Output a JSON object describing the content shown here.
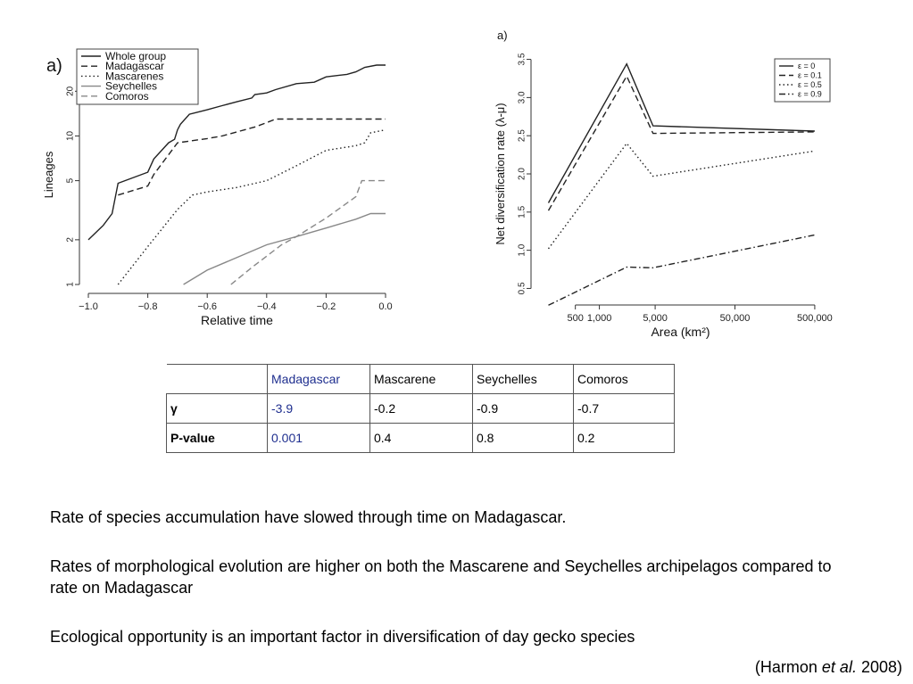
{
  "chart_data": [
    {
      "type": "line",
      "panel_label": "a)",
      "xlabel": "Relative time",
      "ylabel": "Lineages",
      "y_scale": "log",
      "xlim": [
        -1.0,
        0.0
      ],
      "ylim": [
        1,
        30
      ],
      "x_ticks": [
        "−1.0",
        "−0.8",
        "−0.6",
        "−0.4",
        "−0.2",
        "0.0"
      ],
      "x_tick_values": [
        -1.0,
        -0.8,
        -0.6,
        -0.4,
        -0.2,
        0.0
      ],
      "y_ticks": [
        "1",
        "2",
        "5",
        "10",
        "20"
      ],
      "y_tick_values": [
        1,
        2,
        5,
        10,
        20
      ],
      "legend_position": "top-left",
      "series": [
        {
          "name": "Whole group",
          "color": "#222222",
          "dash": "solid",
          "x": [
            -1.0,
            -0.95,
            -0.92,
            -0.9,
            -0.8,
            -0.78,
            -0.73,
            -0.71,
            -0.7,
            -0.69,
            -0.66,
            -0.6,
            -0.55,
            -0.5,
            -0.45,
            -0.44,
            -0.4,
            -0.37,
            -0.3,
            -0.24,
            -0.2,
            -0.13,
            -0.1,
            -0.07,
            -0.03,
            0.0
          ],
          "y": [
            2,
            2.5,
            3,
            4.8,
            5.7,
            7,
            9,
            9.5,
            11,
            12,
            14,
            15,
            16,
            17,
            18,
            19,
            19.5,
            20.5,
            22.5,
            23,
            25,
            26,
            27,
            29,
            30,
            30
          ]
        },
        {
          "name": "Madagascar",
          "color": "#222222",
          "dash": "dashed",
          "x": [
            -0.9,
            -0.8,
            -0.78,
            -0.7,
            -0.6,
            -0.55,
            -0.44,
            -0.4,
            -0.37,
            -0.3,
            -0.2,
            0.0
          ],
          "y": [
            4,
            4.6,
            5.5,
            9,
            9.6,
            10,
            11.5,
            12.3,
            13,
            13,
            13,
            13
          ]
        },
        {
          "name": "Mascarenes",
          "color": "#222222",
          "dash": "dotted",
          "x": [
            -0.9,
            -0.8,
            -0.7,
            -0.65,
            -0.6,
            -0.5,
            -0.4,
            -0.3,
            -0.2,
            -0.1,
            -0.07,
            -0.05,
            0.0
          ],
          "y": [
            1,
            1.8,
            3.2,
            4,
            4.2,
            4.5,
            5,
            6.3,
            8,
            8.6,
            9,
            10.5,
            11
          ]
        },
        {
          "name": "Seychelles",
          "color": "#888888",
          "dash": "solid",
          "x": [
            -0.68,
            -0.6,
            -0.4,
            -0.3,
            -0.2,
            -0.1,
            -0.05,
            0.0
          ],
          "y": [
            1,
            1.25,
            1.85,
            2.1,
            2.4,
            2.75,
            3,
            3
          ]
        },
        {
          "name": "Comoros",
          "color": "#888888",
          "dash": "dashed",
          "x": [
            -0.52,
            -0.45,
            -0.35,
            -0.3,
            -0.2,
            -0.1,
            -0.08,
            -0.05,
            0.0
          ],
          "y": [
            1,
            1.3,
            1.85,
            2.1,
            2.8,
            3.9,
            5,
            5,
            5
          ]
        }
      ]
    },
    {
      "type": "line",
      "panel_label": "a)",
      "xlabel": "Area (km²)",
      "ylabel": "Net diversification rate (λ-μ)",
      "x_scale": "log",
      "xlim": [
        180,
        600000
      ],
      "ylim": [
        0.4,
        3.6
      ],
      "x_ticks": [
        "500",
        "1,000",
        "5,000",
        "50,000",
        "500,000"
      ],
      "x_tick_values": [
        500,
        1000,
        5000,
        50000,
        500000
      ],
      "y_ticks": [
        "0.5",
        "1.0",
        "1.5",
        "2.0",
        "2.5",
        "3.0",
        "3.5"
      ],
      "y_tick_values": [
        0.5,
        1.0,
        1.5,
        2.0,
        2.5,
        3.0,
        3.5
      ],
      "legend_position": "top-right",
      "series": [
        {
          "name": "ε = 0",
          "color": "#222222",
          "dash": "solid",
          "x": [
            230,
            2200,
            4700,
            500000
          ],
          "y": [
            1.62,
            3.44,
            2.63,
            2.56
          ]
        },
        {
          "name": "ε = 0.1",
          "color": "#222222",
          "dash": "dashed",
          "x": [
            230,
            2200,
            4700,
            500000
          ],
          "y": [
            1.52,
            3.28,
            2.53,
            2.55
          ]
        },
        {
          "name": "ε = 0.5",
          "color": "#222222",
          "dash": "dotted",
          "x": [
            230,
            2200,
            4700,
            500000
          ],
          "y": [
            1.02,
            2.4,
            1.97,
            2.3
          ]
        },
        {
          "name": "ε = 0.9",
          "color": "#222222",
          "dash": "dashdot",
          "x": [
            230,
            2200,
            4700,
            500000
          ],
          "y": [
            0.28,
            0.78,
            0.77,
            1.2
          ]
        }
      ]
    }
  ],
  "table": {
    "headers": [
      "",
      "Madagascar",
      "Mascarene",
      "Seychelles",
      "Comoros"
    ],
    "rows": [
      {
        "label": "γ",
        "values": [
          "-3.9",
          "-0.2",
          "-0.9",
          "-0.7"
        ]
      },
      {
        "label": "P-value",
        "values": [
          "0.001",
          "0.4",
          "0.8",
          "0.2"
        ]
      }
    ],
    "highlight_color": "#1f2f8f"
  },
  "notes": [
    "Rate of species accumulation have slowed through time on Madagascar.",
    "Rates of morphological evolution are higher on both the Mascarene and Seychelles archipelagos compared to rate on Madagascar",
    "Ecological opportunity is an important factor in diversification of day gecko species"
  ],
  "citation": {
    "prefix": "(Harmon ",
    "emph": "et al.",
    "suffix": " 2008)"
  }
}
